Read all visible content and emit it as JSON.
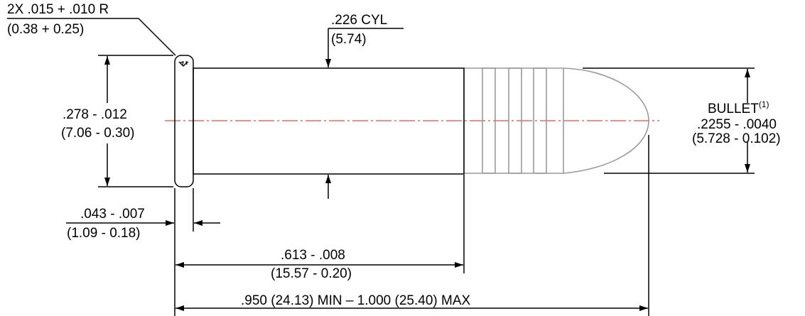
{
  "colors": {
    "outline": "#000000",
    "bullet": "#9a9a9a",
    "centerline": "#d62020"
  },
  "dimensions": {
    "rim_radius": {
      "imperial": "2X .015 + .010 R",
      "metric": "(0.38 + 0.25)"
    },
    "body_cylinder": {
      "imperial": ".226 CYL",
      "metric": "(5.74)"
    },
    "rim_diameter": {
      "imperial": ".278 - .012",
      "metric": "(7.06 - 0.30)"
    },
    "rim_thickness": {
      "imperial": ".043 - .007",
      "metric": "(1.09 - 0.18)"
    },
    "case_length": {
      "imperial": ".613 - .008",
      "metric": "(15.57 - 0.20)"
    },
    "overall_length": {
      "text": ".950 (24.13) MIN – 1.000 (25.40) MAX"
    },
    "bullet": {
      "label": "BULLET",
      "note_ref": "(1)",
      "imperial": ".2255 - .0040",
      "metric": "(5.728 - 0.102)"
    }
  }
}
